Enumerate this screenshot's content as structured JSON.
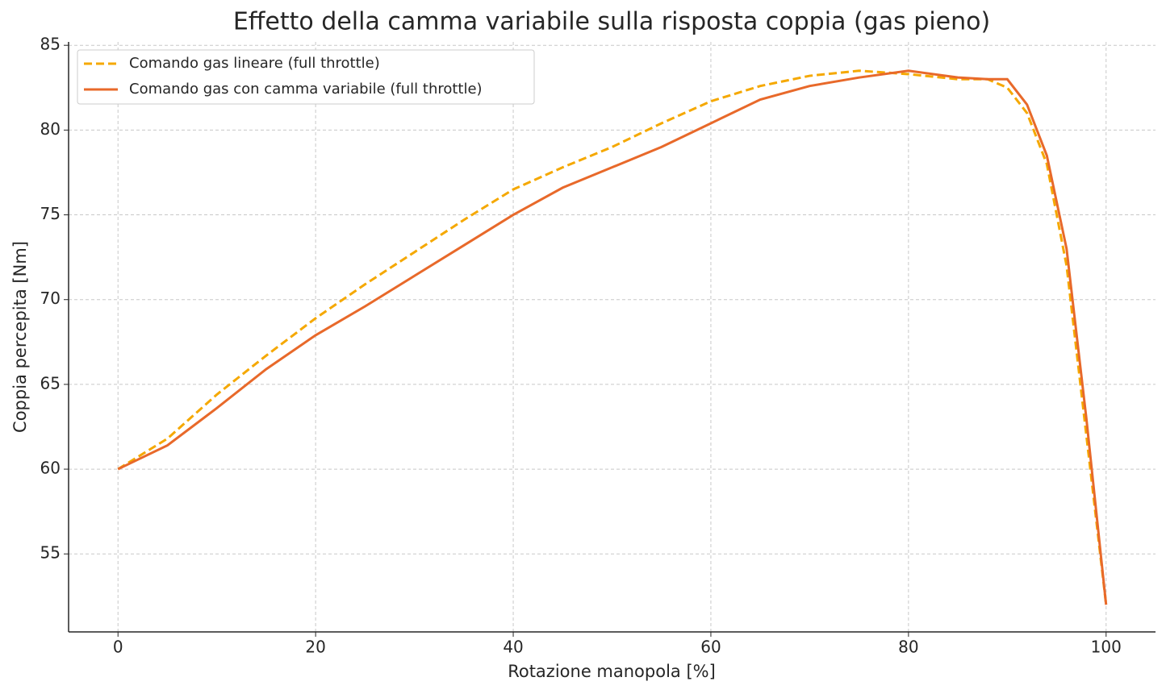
{
  "chart_data": {
    "type": "line",
    "title": "Effetto della camma variabile sulla risposta coppia (gas pieno)",
    "x_label": "Rotazione manopola [%]",
    "y_label": "Coppia percepita [Nm]",
    "x": [
      0,
      5,
      10,
      15,
      20,
      25,
      30,
      35,
      40,
      45,
      50,
      55,
      60,
      65,
      70,
      75,
      80,
      85,
      88,
      90,
      92,
      94,
      96,
      98,
      100
    ],
    "series": [
      {
        "name": "Comando gas lineare (full throttle)",
        "color": "#f5a800",
        "dashed": true,
        "values": [
          60,
          61.8,
          64.4,
          66.7,
          68.9,
          70.9,
          72.8,
          74.7,
          76.5,
          77.8,
          79.0,
          80.4,
          81.7,
          82.6,
          83.2,
          83.5,
          83.3,
          83.0,
          83.0,
          82.5,
          81.0,
          78.0,
          72.0,
          62.0,
          52.0
        ]
      },
      {
        "name": "Comando gas con camma variabile (full throttle)",
        "color": "#e8692a",
        "dashed": false,
        "values": [
          60,
          61.4,
          63.6,
          65.9,
          67.9,
          69.6,
          71.4,
          73.2,
          75.0,
          76.6,
          77.8,
          79.0,
          80.4,
          81.8,
          82.6,
          83.1,
          83.5,
          83.1,
          83.0,
          83.0,
          81.5,
          78.5,
          73.0,
          63.0,
          52.0
        ]
      }
    ],
    "xlim": [
      -5,
      105
    ],
    "ylim": [
      50.4,
      85.2
    ],
    "xticks": [
      0,
      20,
      40,
      60,
      80,
      100
    ],
    "yticks": [
      55,
      60,
      65,
      70,
      75,
      80,
      85
    ],
    "grid": true,
    "legend": "upper left"
  }
}
